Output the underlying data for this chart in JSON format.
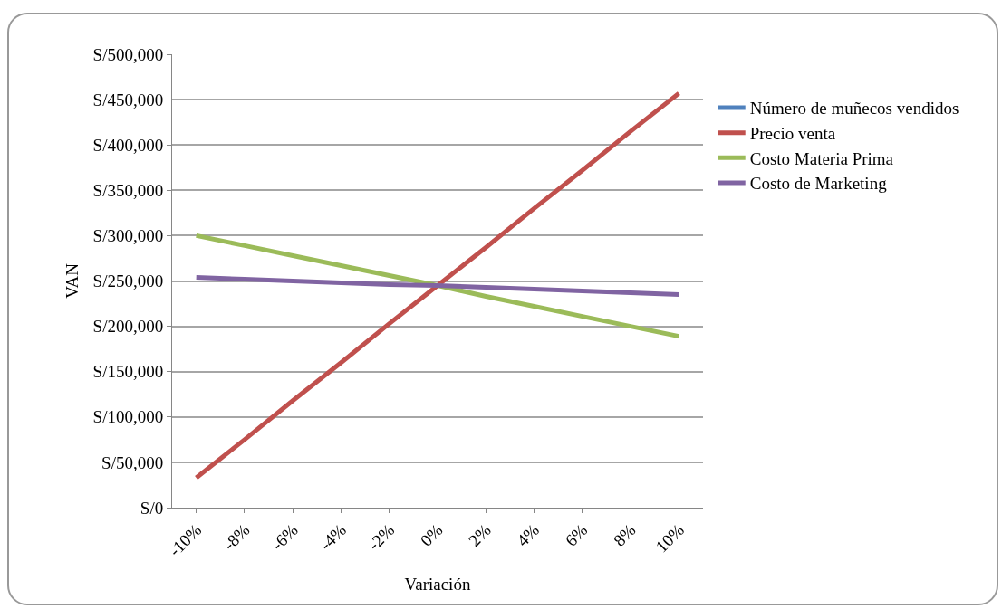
{
  "chart_data": {
    "type": "line",
    "xlabel": "Variación",
    "ylabel": "VAN",
    "categories": [
      "-10%",
      "-8%",
      "-6%",
      "-4%",
      "-2%",
      "0%",
      "2%",
      "4%",
      "6%",
      "8%",
      "10%"
    ],
    "series": [
      {
        "name": "Número de muñecos vendidos",
        "color": "#4f81bd",
        "values": [
          null,
          null,
          null,
          null,
          null,
          null,
          null,
          null,
          null,
          null,
          null
        ]
      },
      {
        "name": "Precio venta",
        "color": "#c0504d",
        "values": [
          33000,
          75000,
          118000,
          160000,
          203000,
          245000,
          287000,
          330000,
          372000,
          415000,
          457000
        ]
      },
      {
        "name": "Costo Materia Prima",
        "color": "#9bbb59",
        "values": [
          300000,
          289000,
          278000,
          267000,
          256000,
          245000,
          233000,
          222000,
          211000,
          200000,
          189000
        ]
      },
      {
        "name": "Costo de Marketing",
        "color": "#8064a2",
        "values": [
          254000,
          252000,
          250000,
          248000,
          246000,
          245000,
          243000,
          241000,
          239000,
          237000,
          235000
        ]
      }
    ],
    "ylim": [
      0,
      500000
    ],
    "yticks": [
      {
        "value": 0,
        "label": "S/0"
      },
      {
        "value": 50000,
        "label": "S/50,000"
      },
      {
        "value": 100000,
        "label": "S/100,000"
      },
      {
        "value": 150000,
        "label": "S/150,000"
      },
      {
        "value": 200000,
        "label": "S/200,000"
      },
      {
        "value": 250000,
        "label": "S/250,000"
      },
      {
        "value": 300000,
        "label": "S/300,000"
      },
      {
        "value": 350000,
        "label": "S/350,000"
      },
      {
        "value": 400000,
        "label": "S/400,000"
      },
      {
        "value": 450000,
        "label": "S/450,000"
      },
      {
        "value": 500000,
        "label": "S/500,000"
      }
    ],
    "grid": "y",
    "legend": "right",
    "marker": "none",
    "line_style": "solid"
  }
}
